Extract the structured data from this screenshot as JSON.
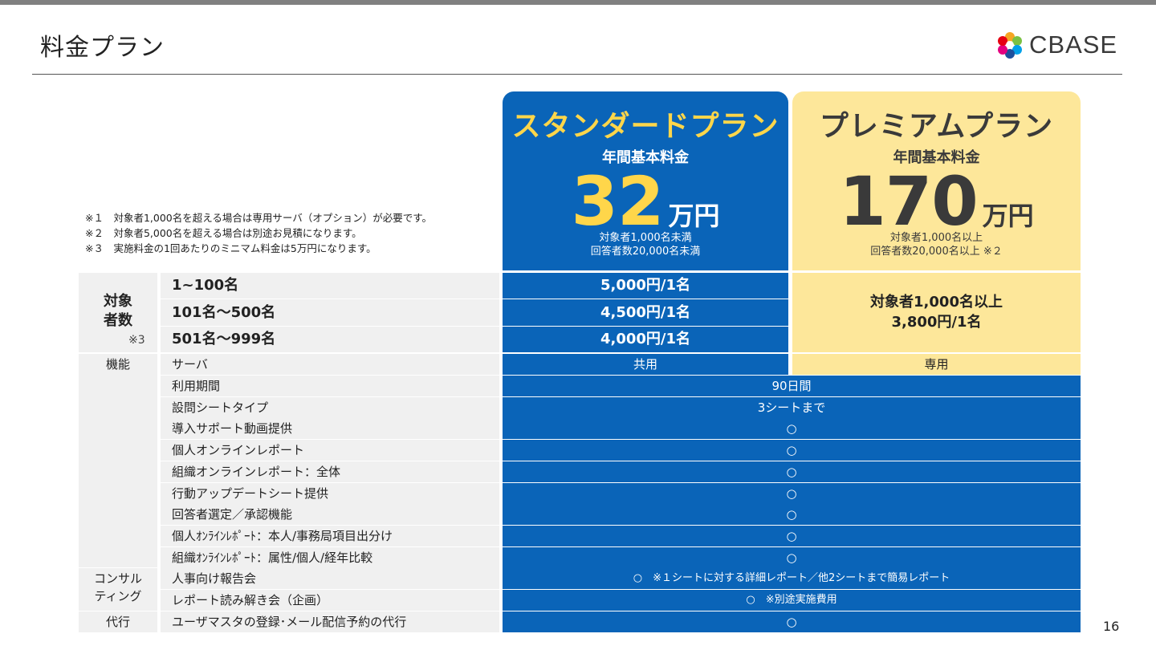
{
  "page": {
    "title": "料金プラン",
    "logo_text": "CBASE",
    "page_number": "16"
  },
  "notes": [
    "※１　対象者1,000名を超える場合は専用サーバ（オプション）が必要です。",
    "※２　対象者5,000名を超える場合は別途お見積になります。",
    "※３　実施料金の1回あたりのミニマム料金は5万円になります。"
  ],
  "plans": {
    "standard": {
      "name": "スタンダードプラン",
      "fee_label": "年間基本料金",
      "price": "32",
      "unit": "万円",
      "sub1": "対象者1,000名未満",
      "sub2": "回答者数20,000名未満"
    },
    "premium": {
      "name": "プレミアムプラン",
      "fee_label": "年間基本料金",
      "price": "170",
      "unit": "万円",
      "sub1": "対象者1,000名以上",
      "sub2": "回答者数20,000名以上 ※２"
    }
  },
  "headcount": {
    "category_line1": "対象",
    "category_line2": "者数",
    "category_note": "※3",
    "tiers": [
      {
        "label": "1~100名",
        "standard_price": "5,000円/1名"
      },
      {
        "label": "101名～500名",
        "standard_price": "4,500円/1名"
      },
      {
        "label": "501名～999名",
        "standard_price": "4,000円/1名"
      }
    ],
    "premium_line1": "対象者1,000名以上",
    "premium_line2": "3,800円/1名"
  },
  "features": {
    "category": "機能",
    "server": {
      "label": "サーバ",
      "standard": "共用",
      "premium": "専用"
    },
    "rows": [
      {
        "label": "利用期間",
        "value": "90日間"
      },
      {
        "label": "設問シートタイプ",
        "value": "3シートまで"
      },
      {
        "label": "導入サポート動画提供",
        "value": "○"
      },
      {
        "label": "個人オンラインレポート",
        "value": "○"
      },
      {
        "label": "組織オンラインレポート：全体",
        "value": "○"
      },
      {
        "label": "行動アップデートシート提供",
        "value": "○"
      },
      {
        "label": "回答者選定／承認機能",
        "value": "○"
      },
      {
        "label": "個人ｵﾝﾗｲﾝﾚﾎﾟｰﾄ：本人/事務局項目出分け",
        "value": "○"
      },
      {
        "label": "組織ｵﾝﾗｲﾝﾚﾎﾟｰﾄ：属性/個人/経年比較",
        "value": "○"
      }
    ]
  },
  "consulting": {
    "category_line1": "コンサル",
    "category_line2": "ティング",
    "rows": [
      {
        "label": "人事向け報告会",
        "value": "○　※１シートに対する詳細レポート／他2シートまで簡易レポート"
      },
      {
        "label": "レポート読み解き会（企画）",
        "value": "○　※別途実施費用"
      }
    ]
  },
  "agency": {
    "category": "代行",
    "rows": [
      {
        "label": "ユーザマスタの登録･メール配信予約の代行",
        "value": "○"
      }
    ]
  },
  "colors": {
    "standard_blue": "#0a64b8",
    "premium_yellow": "#fde79a",
    "accent_yellow": "#ffd64a",
    "label_gray": "#f0f0f0"
  }
}
